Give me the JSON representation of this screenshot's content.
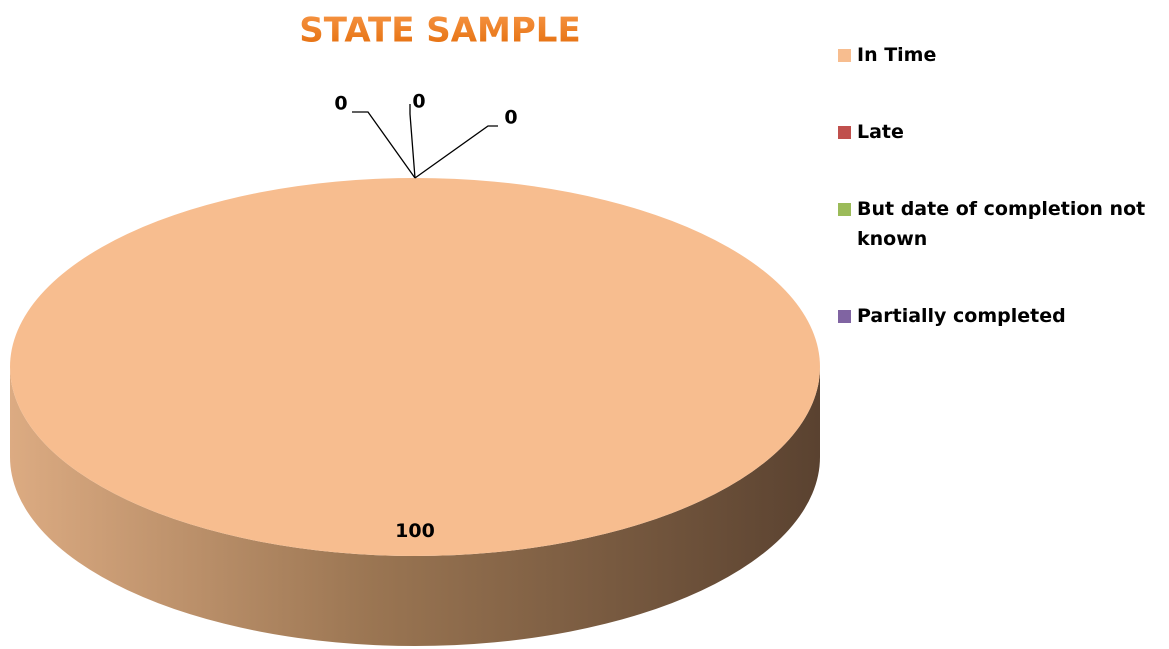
{
  "chart_data": {
    "type": "pie",
    "title": "STATE SAMPLE",
    "categories": [
      "In Time",
      "Late",
      "But date of completion not known",
      "Partially completed"
    ],
    "values": [
      100,
      0,
      0,
      0
    ],
    "colors": [
      "#f7bd8f",
      "#c0504d",
      "#9bbb59",
      "#8064a2"
    ],
    "legend": "right"
  }
}
